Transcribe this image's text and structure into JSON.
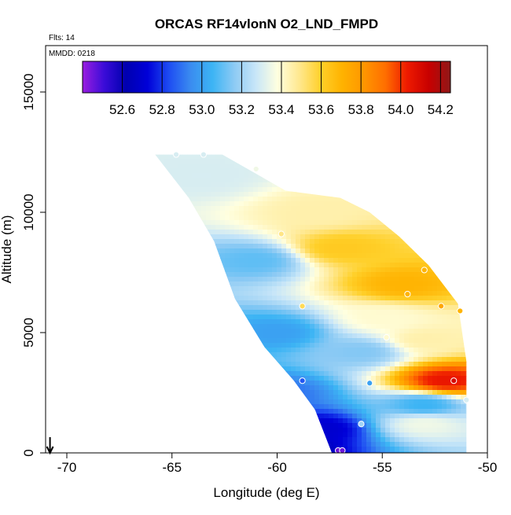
{
  "chart_data": {
    "type": "heatmap",
    "title": "ORCAS RF14vlonN O2_LND_FMPD",
    "annotations": [
      "Flts: 14",
      "MMDD: 0218"
    ],
    "xlabel": "Longitude (deg E)",
    "ylabel": "Altitude (m)",
    "x_ticks": [
      -70,
      -65,
      -60,
      -55,
      -50
    ],
    "y_ticks": [
      0,
      5000,
      10000,
      15000
    ],
    "xlim": [
      -71,
      -50
    ],
    "ylim": [
      0,
      16800
    ],
    "grid": false,
    "colorbar": {
      "placement": "top-inside",
      "range": [
        52.4,
        54.25
      ],
      "ticks": [
        52.6,
        52.8,
        53.0,
        53.2,
        53.4,
        53.6,
        53.8,
        54.0,
        54.2
      ],
      "colors": [
        "#9a1ee0",
        "#3a0cd8",
        "#0000b0",
        "#0000d8",
        "#1e4df2",
        "#3a8cf0",
        "#3cb4f4",
        "#8ccaf4",
        "#c8e6f8",
        "#ffffe0",
        "#ffe890",
        "#ffd02a",
        "#ffb200",
        "#ff9600",
        "#ff6e00",
        "#ee1a00",
        "#c80000",
        "#901818"
      ]
    },
    "envelope": [
      [
        -65.8,
        12400
      ],
      [
        -62.6,
        12400
      ],
      [
        -61.0,
        11600
      ],
      [
        -59.6,
        10900
      ],
      [
        -57.0,
        10600
      ],
      [
        -55.6,
        10000
      ],
      [
        -54.2,
        9000
      ],
      [
        -52.8,
        7800
      ],
      [
        -51.4,
        6200
      ],
      [
        -51.0,
        3800
      ],
      [
        -51.0,
        0
      ],
      [
        -57.4,
        0
      ],
      [
        -58.2,
        1800
      ],
      [
        -59.2,
        3000
      ],
      [
        -60.6,
        4400
      ],
      [
        -62.0,
        6400
      ],
      [
        -63.0,
        8800
      ],
      [
        -64.2,
        10600
      ],
      [
        -65.8,
        12400
      ]
    ],
    "field_layers": [
      {
        "lon": -60.0,
        "alt": 200,
        "value": 52.55
      },
      {
        "lon": -58.0,
        "alt": 1000,
        "value": 52.7
      },
      {
        "lon": -53.0,
        "alt": 1200,
        "value": 53.35
      },
      {
        "lon": -60.0,
        "alt": 2500,
        "value": 52.9
      },
      {
        "lon": -53.0,
        "alt": 2000,
        "value": 53.05
      },
      {
        "lon": -52.0,
        "alt": 3000,
        "value": 54.05
      },
      {
        "lon": -56.0,
        "alt": 4200,
        "value": 53.15
      },
      {
        "lon": -53.0,
        "alt": 4700,
        "value": 53.45
      },
      {
        "lon": -60.0,
        "alt": 5000,
        "value": 53.0
      },
      {
        "lon": -55.0,
        "alt": 5600,
        "value": 53.4
      },
      {
        "lon": -54.0,
        "alt": 7000,
        "value": 53.7
      },
      {
        "lon": -57.0,
        "alt": 8500,
        "value": 53.62
      },
      {
        "lon": -61.0,
        "alt": 8000,
        "value": 53.1
      },
      {
        "lon": -58.0,
        "alt": 10000,
        "value": 53.45
      },
      {
        "lon": -63.5,
        "alt": 11500,
        "value": 53.3
      }
    ],
    "observations": [
      {
        "lon": -64.8,
        "alt": 12400,
        "value": 53.3
      },
      {
        "lon": -63.5,
        "alt": 12400,
        "value": 53.3
      },
      {
        "lon": -61.0,
        "alt": 11800,
        "value": 53.35
      },
      {
        "lon": -59.8,
        "alt": 9100,
        "value": 53.5
      },
      {
        "lon": -53.0,
        "alt": 7600,
        "value": 53.7
      },
      {
        "lon": -53.8,
        "alt": 6600,
        "value": 53.7
      },
      {
        "lon": -52.2,
        "alt": 6100,
        "value": 53.75
      },
      {
        "lon": -51.3,
        "alt": 5900,
        "value": 53.7
      },
      {
        "lon": -58.8,
        "alt": 6100,
        "value": 53.55
      },
      {
        "lon": -54.8,
        "alt": 4800,
        "value": 53.4
      },
      {
        "lon": -58.8,
        "alt": 3000,
        "value": 52.85
      },
      {
        "lon": -55.6,
        "alt": 2900,
        "value": 53.0
      },
      {
        "lon": -51.6,
        "alt": 3000,
        "value": 54.1
      },
      {
        "lon": -51.0,
        "alt": 2200,
        "value": 53.3
      },
      {
        "lon": -56.0,
        "alt": 1200,
        "value": 53.2
      },
      {
        "lon": -57.1,
        "alt": 100,
        "value": 52.45
      },
      {
        "lon": -56.9,
        "alt": 100,
        "value": 52.45
      }
    ],
    "arrow_marker": {
      "lon": -70.8,
      "direction": "down"
    }
  }
}
